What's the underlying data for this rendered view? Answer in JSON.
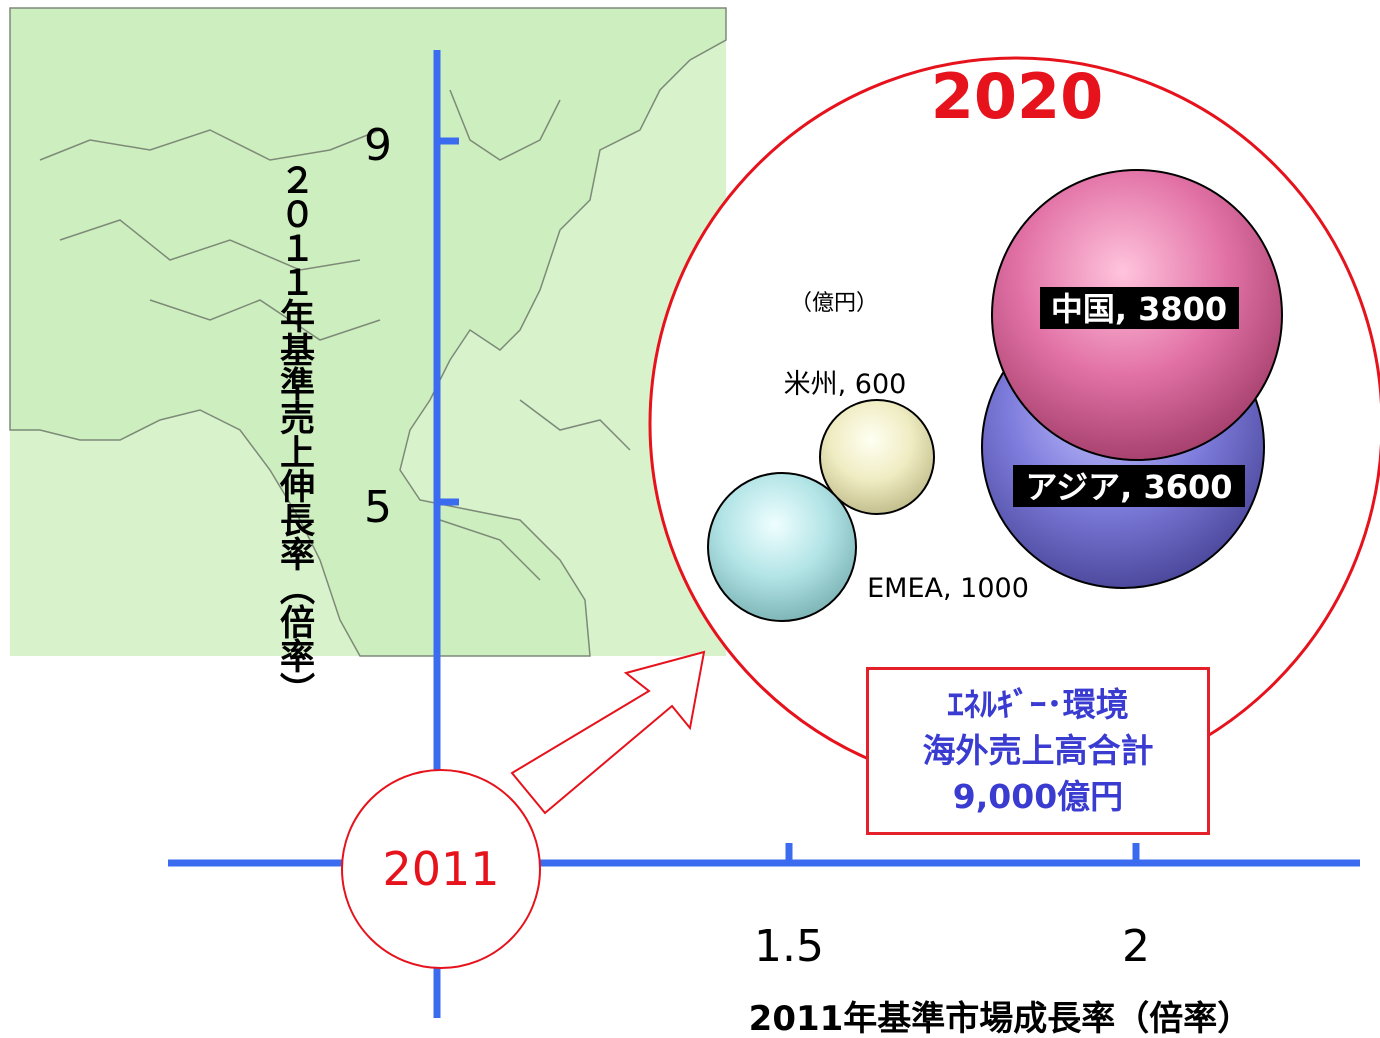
{
  "colors": {
    "axis": "#3b6cf0",
    "accent_red": "#e6121c",
    "map_land": "#d8f2cc",
    "map_border": "#7d8a78",
    "total_text": "#3a3bd0"
  },
  "chart_data": {
    "type": "bubble",
    "title": "2020",
    "unit_note": "（億円）",
    "xlabel": "2011年基準市場成長率（倍率）",
    "ylabel": "２０１１年基準売上伸長率（倍率）",
    "x_ticks": [
      "1.5",
      "2"
    ],
    "y_ticks": [
      "9",
      "5"
    ],
    "origin_label": "2011",
    "legend": "none",
    "grid": false,
    "series": [
      {
        "label": "中国, 3800",
        "value": 3800,
        "color": "#e56ea4"
      },
      {
        "label": "アジア, 3600",
        "value": 3600,
        "color": "#7a78d8"
      },
      {
        "label": "EMEA, 1000",
        "value": 1000,
        "color": "#b9e8ea"
      },
      {
        "label": "米州, 600",
        "value": 600,
        "color": "#f2f0c6"
      }
    ],
    "total_box": {
      "line1": "ｴﾈﾙｷﾞｰ･環境",
      "line2": "海外売上高合計",
      "line3": "9,000億円"
    }
  }
}
